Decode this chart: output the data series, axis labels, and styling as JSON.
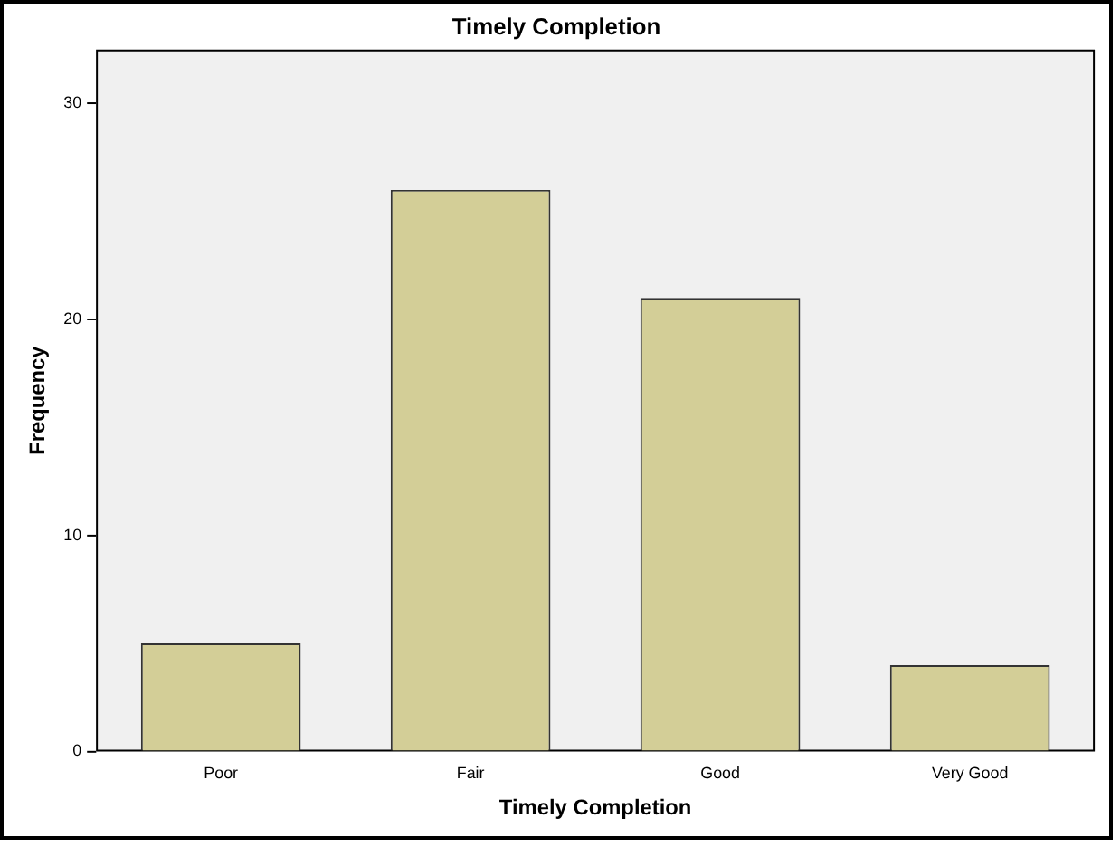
{
  "chart_data": {
    "type": "bar",
    "title": "Timely Completion",
    "xlabel": "Timely Completion",
    "ylabel": "Frequency",
    "categories": [
      "Poor",
      "Fair",
      "Good",
      "Very Good"
    ],
    "values": [
      5,
      26,
      21,
      4
    ],
    "color": "#d3ce97",
    "ylim": [
      0,
      32.5
    ],
    "yticks": [
      0,
      10,
      20,
      30
    ],
    "grid": false,
    "legend": false
  }
}
